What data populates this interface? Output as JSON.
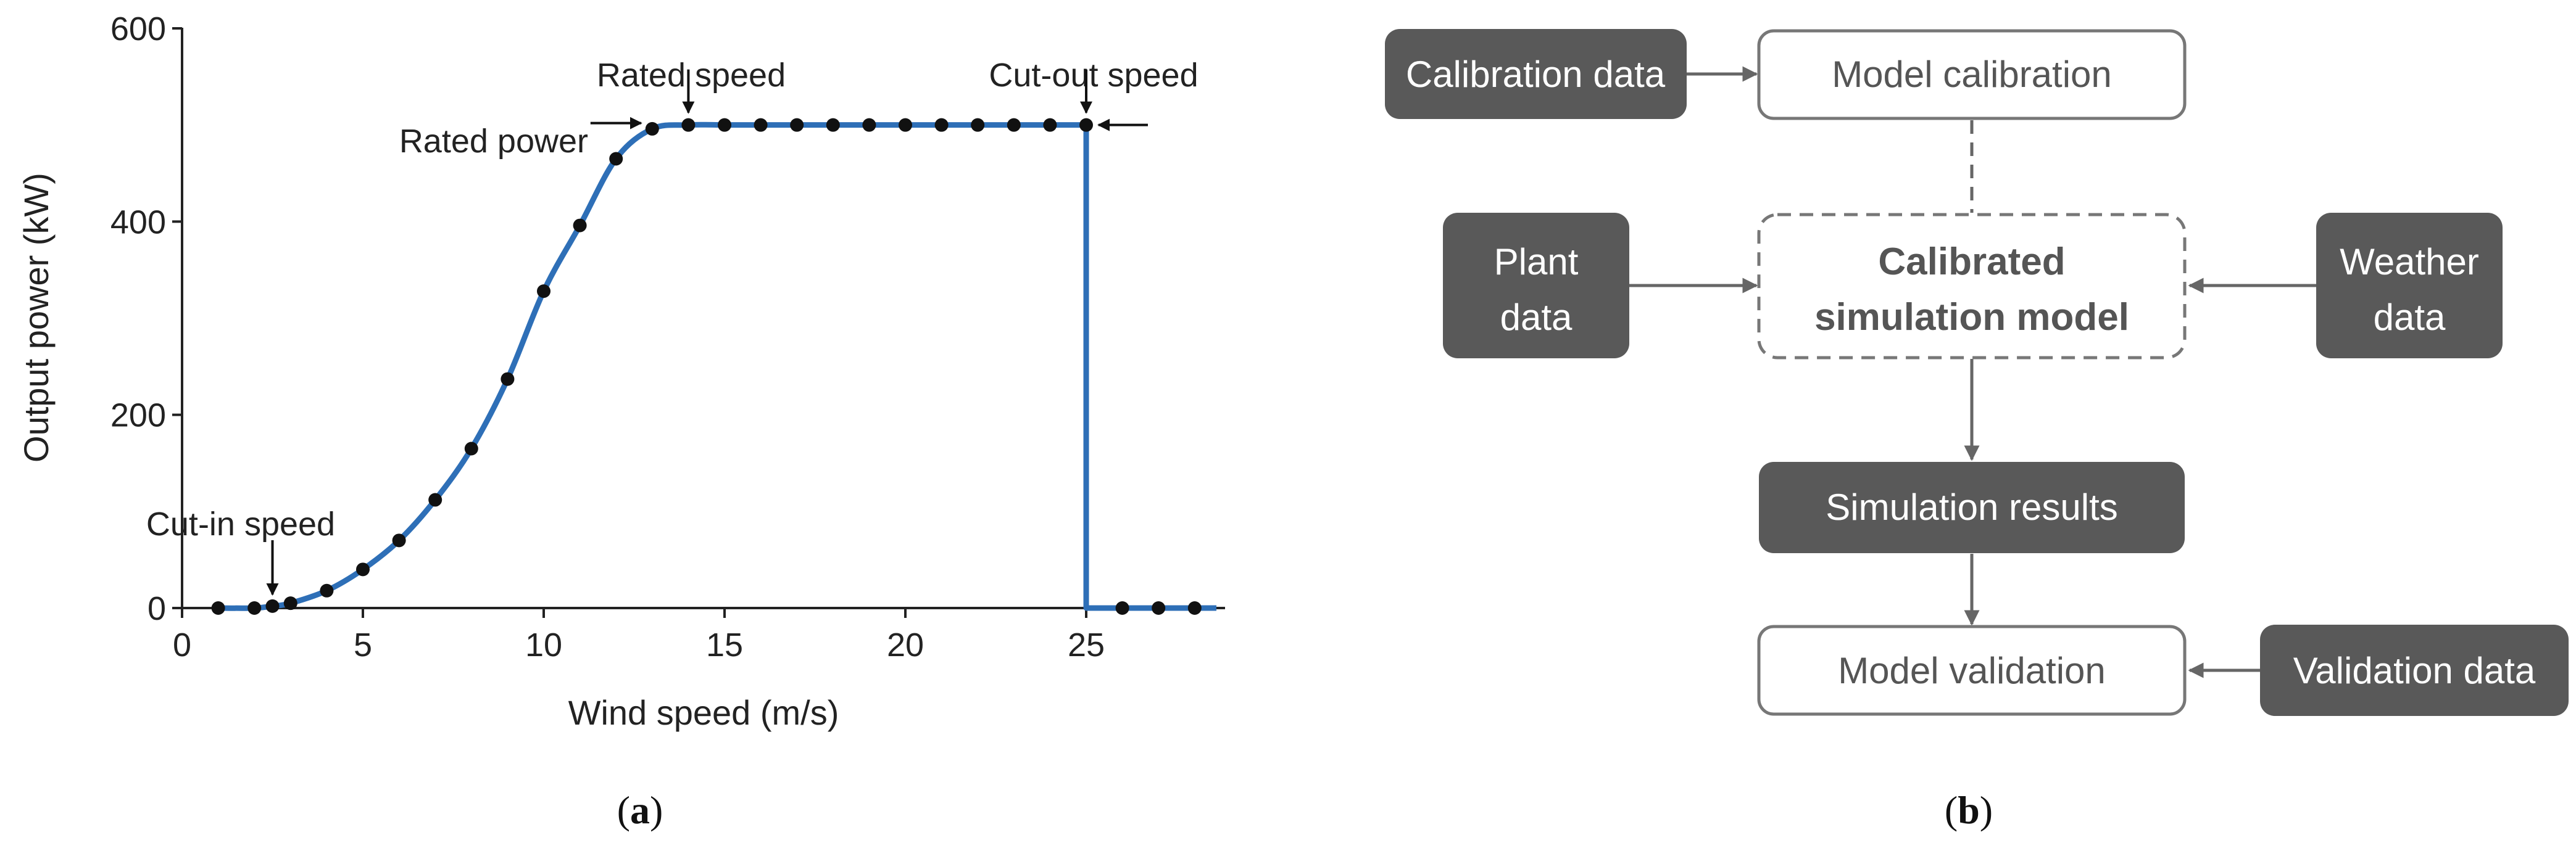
{
  "chart_data": {
    "type": "line",
    "xlabel": "Wind speed (m/s)",
    "ylabel": "Output power (kW)",
    "xlim": [
      0,
      28.7
    ],
    "ylim": [
      0,
      600
    ],
    "x_ticks": [
      0,
      5,
      10,
      15,
      20,
      25
    ],
    "y_ticks": [
      0,
      200,
      400,
      600
    ],
    "grid": false,
    "line_color": "#2e6fb7",
    "marker_color": "#111111",
    "series": [
      {
        "points": [
          [
            1,
            0
          ],
          [
            2,
            0
          ],
          [
            2.5,
            2
          ],
          [
            3,
            5
          ],
          [
            4,
            18
          ],
          [
            5,
            40
          ],
          [
            6,
            70
          ],
          [
            7,
            112
          ],
          [
            8,
            165
          ],
          [
            9,
            237
          ],
          [
            10,
            328
          ],
          [
            11,
            396
          ],
          [
            12,
            465
          ],
          [
            13,
            496
          ],
          [
            14,
            500
          ],
          [
            15,
            500
          ],
          [
            16,
            500
          ],
          [
            17,
            500
          ],
          [
            18,
            500
          ],
          [
            19,
            500
          ],
          [
            20,
            500
          ],
          [
            21,
            500
          ],
          [
            22,
            500
          ],
          [
            23,
            500
          ],
          [
            24,
            500
          ],
          [
            25,
            500
          ],
          [
            26,
            0
          ],
          [
            27,
            0
          ],
          [
            28,
            0
          ]
        ],
        "cutout_at": 25,
        "x_end": 28.6
      }
    ],
    "annotations": [
      {
        "key": "cutin",
        "text": "Cut-in speed",
        "x": 2.5,
        "y": 0
      },
      {
        "key": "rated_power",
        "text": "Rated power",
        "x": 13,
        "y": 500
      },
      {
        "key": "rated_speed",
        "text": "Rated speed",
        "x": 14,
        "y": 500
      },
      {
        "key": "cutout",
        "text": "Cut-out speed",
        "x": 25,
        "y": 500
      }
    ]
  },
  "panels": {
    "a": "a",
    "b": "b"
  },
  "diagram": {
    "calibration_data": "Calibration data",
    "model_calibration": "Model calibration",
    "plant_data": [
      "Plant",
      "data"
    ],
    "calibrated_model": [
      "Calibrated",
      "simulation model"
    ],
    "weather_data": [
      "Weather",
      "data"
    ],
    "simulation_results": "Simulation results",
    "model_validation": "Model validation",
    "validation_data": "Validation data"
  }
}
